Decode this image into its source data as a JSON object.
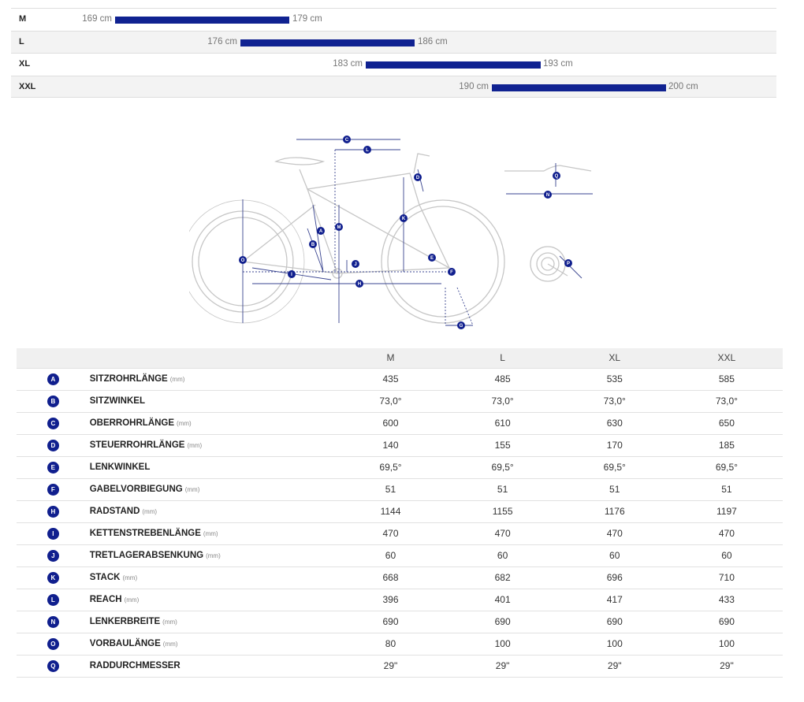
{
  "size_ranges": [
    {
      "size": "M",
      "min": "169 cm",
      "max": "179 cm"
    },
    {
      "size": "L",
      "min": "176 cm",
      "max": "186 cm"
    },
    {
      "size": "XL",
      "min": "183 cm",
      "max": "193 cm"
    },
    {
      "size": "XXL",
      "min": "190 cm",
      "max": "200 cm"
    }
  ],
  "diagram_labels": [
    "A",
    "B",
    "C",
    "D",
    "E",
    "F",
    "G",
    "H",
    "I",
    "J",
    "K",
    "L",
    "M",
    "N",
    "O",
    "P",
    "Q"
  ],
  "table": {
    "columns": [
      "M",
      "L",
      "XL",
      "XXL"
    ],
    "rows": [
      {
        "badge": "A",
        "label": "SITZROHRLÄNGE",
        "unit": "(mm)",
        "values": [
          "435",
          "485",
          "535",
          "585"
        ]
      },
      {
        "badge": "B",
        "label": "SITZWINKEL",
        "unit": "",
        "values": [
          "73,0°",
          "73,0°",
          "73,0°",
          "73,0°"
        ]
      },
      {
        "badge": "C",
        "label": "OBERROHRLÄNGE",
        "unit": "(mm)",
        "values": [
          "600",
          "610",
          "630",
          "650"
        ]
      },
      {
        "badge": "D",
        "label": "STEUERROHRLÄNGE",
        "unit": "(mm)",
        "values": [
          "140",
          "155",
          "170",
          "185"
        ]
      },
      {
        "badge": "E",
        "label": "LENKWINKEL",
        "unit": "",
        "values": [
          "69,5°",
          "69,5°",
          "69,5°",
          "69,5°"
        ]
      },
      {
        "badge": "F",
        "label": "GABELVORBIEGUNG",
        "unit": "(mm)",
        "values": [
          "51",
          "51",
          "51",
          "51"
        ]
      },
      {
        "badge": "H",
        "label": "RADSTAND",
        "unit": "(mm)",
        "values": [
          "1144",
          "1155",
          "1176",
          "1197"
        ]
      },
      {
        "badge": "I",
        "label": "KETTENSTREBENLÄNGE",
        "unit": "(mm)",
        "values": [
          "470",
          "470",
          "470",
          "470"
        ]
      },
      {
        "badge": "J",
        "label": "TRETLAGERABSENKUNG",
        "unit": "(mm)",
        "values": [
          "60",
          "60",
          "60",
          "60"
        ]
      },
      {
        "badge": "K",
        "label": "STACK",
        "unit": "(mm)",
        "values": [
          "668",
          "682",
          "696",
          "710"
        ]
      },
      {
        "badge": "L",
        "label": "REACH",
        "unit": "(mm)",
        "values": [
          "396",
          "401",
          "417",
          "433"
        ]
      },
      {
        "badge": "N",
        "label": "LENKERBREITE",
        "unit": "(mm)",
        "values": [
          "690",
          "690",
          "690",
          "690"
        ]
      },
      {
        "badge": "O",
        "label": "VORBAULÄNGE",
        "unit": "(mm)",
        "values": [
          "80",
          "100",
          "100",
          "100"
        ]
      },
      {
        "badge": "Q",
        "label": "RADDURCHMESSER",
        "unit": "",
        "values": [
          "29\"",
          "29\"",
          "29\"",
          "29\""
        ]
      }
    ]
  },
  "colors": {
    "accent": "#102291",
    "badge": "#101f8e"
  }
}
